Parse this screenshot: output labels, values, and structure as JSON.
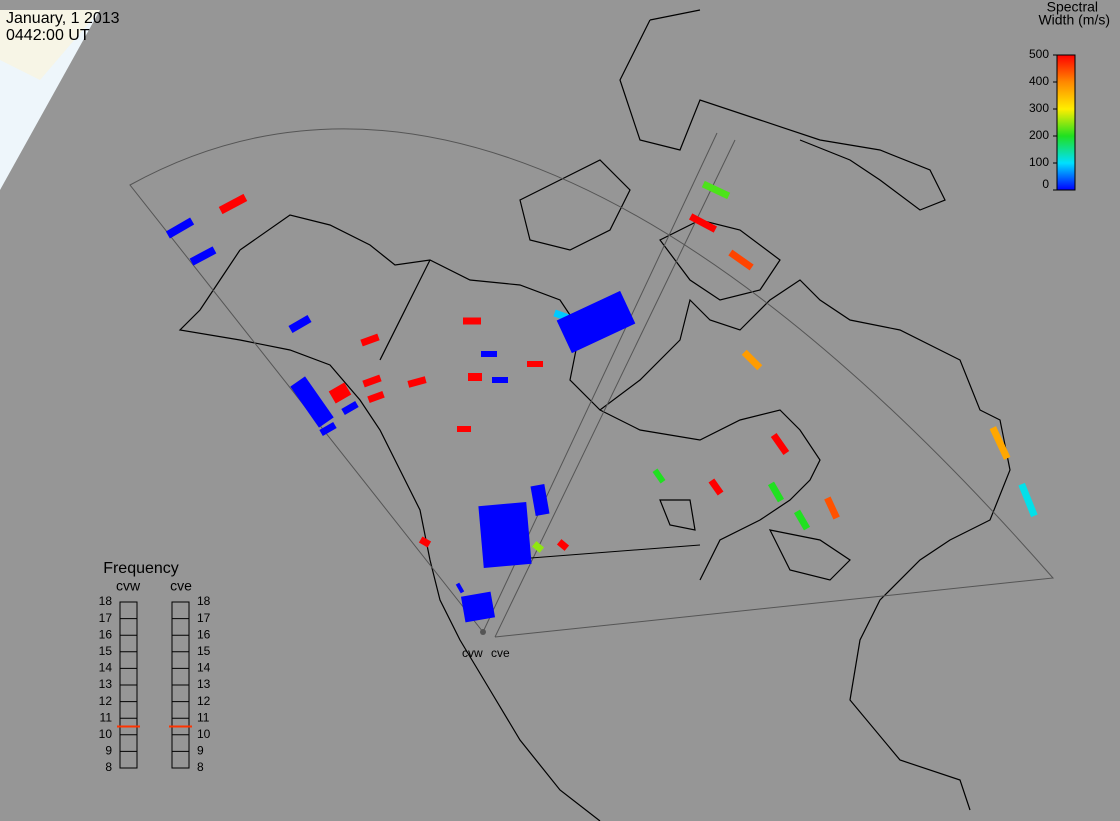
{
  "header": {
    "date": "January, 1 2013",
    "time": "0442:00 UT"
  },
  "colorbar": {
    "title_line1": "Spectral",
    "title_line2": "Width (m/s)",
    "lim": [
      0,
      500
    ],
    "ticks": [
      0,
      100,
      200,
      300,
      400,
      500
    ]
  },
  "frequency": {
    "title": "Frequency",
    "lim": [
      8,
      18
    ],
    "ticks": [
      8,
      9,
      10,
      11,
      12,
      13,
      14,
      15,
      16,
      17,
      18
    ],
    "radars": [
      {
        "name": "cvw",
        "value": 10.5
      },
      {
        "name": "cve",
        "value": 10.5
      }
    ]
  },
  "sites": [
    {
      "label": "cvw"
    },
    {
      "label": "cve"
    }
  ],
  "echoes": {
    "widths": [
      0,
      500,
      0,
      0,
      500,
      500,
      0,
      500,
      500,
      0,
      500,
      500,
      500,
      500,
      0,
      0,
      500,
      220,
      500,
      450,
      380,
      500,
      500,
      200,
      200,
      440,
      200,
      370,
      110,
      500,
      250,
      500,
      90,
      0,
      0,
      0,
      0,
      0,
      0
    ]
  }
}
